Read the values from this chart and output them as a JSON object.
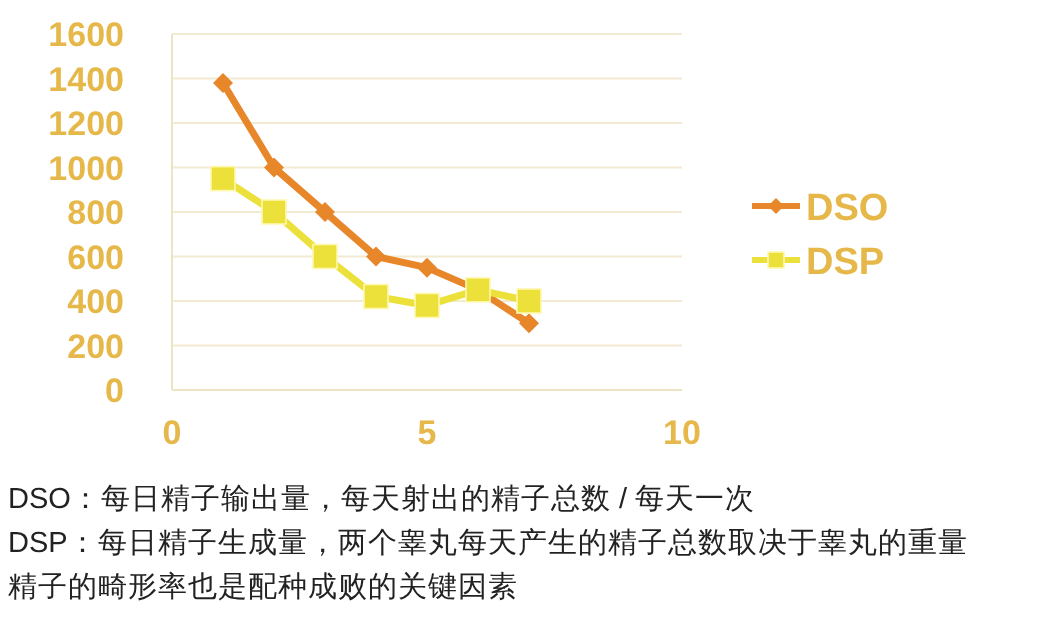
{
  "chart_data": {
    "type": "line",
    "series": [
      {
        "name": "DSO",
        "color": "#e8862a",
        "marker": "diamond",
        "x": [
          1,
          2,
          3,
          4,
          5,
          6,
          7
        ],
        "values": [
          1380,
          1000,
          800,
          600,
          550,
          450,
          300
        ]
      },
      {
        "name": "DSP",
        "color": "#ece13a",
        "marker": "square",
        "x": [
          1,
          2,
          3,
          4,
          5,
          6,
          7
        ],
        "values": [
          950,
          800,
          600,
          420,
          380,
          450,
          400
        ]
      }
    ],
    "xlim": [
      0,
      10
    ],
    "xticks": [
      0,
      5,
      10
    ],
    "ylim": [
      0,
      1600
    ],
    "yticks": [
      0,
      200,
      400,
      600,
      800,
      1000,
      1200,
      1400,
      1600
    ],
    "grid": "y",
    "legend": "right",
    "line_style": "solid",
    "annotations": [
      "DSO：每日精子输出量，每天射出的精子总数 / 每天一次",
      "DSP：每日精子生成量，两个睾丸每天产生的精子总数取决于睾丸的重量",
      "精子的畸形率也是配种成败的关键因素"
    ]
  }
}
